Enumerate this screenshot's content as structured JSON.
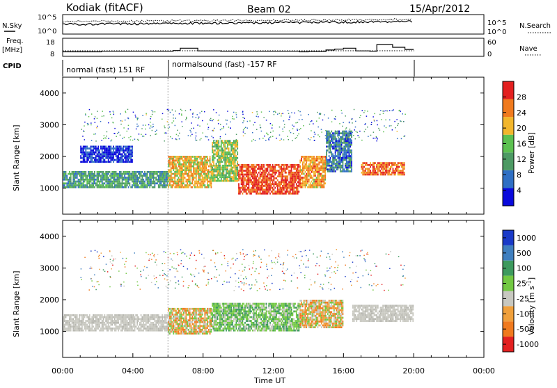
{
  "header": {
    "station": "Kodiak (fitACF)",
    "beam": "Beam 02",
    "date": "15/Apr/2012"
  },
  "top_panels": {
    "nsky_label": "N.Sky",
    "nsearch_label": "N.Search",
    "noise_ticks_left": [
      "10^5",
      "10^0"
    ],
    "noise_ticks_right": [
      "10^5",
      "10^0"
    ],
    "freq_label_line1": "Freq.",
    "freq_label_line2": "[MHz]",
    "freq_ticks": [
      "18",
      "8"
    ],
    "nave_label": "Nave",
    "nave_ticks": [
      "60",
      "0"
    ],
    "cpid_label": "CPID",
    "cpid_segments": [
      "normal (fast) 151 RF",
      "normalsound (fast) -157 RF"
    ],
    "freq_steps_hours": [
      0,
      2.2,
      6.0,
      6.3,
      6.7,
      7.7,
      9.0,
      13.5,
      14.0,
      15.0,
      15.5,
      16.0,
      16.7,
      17.5,
      17.9,
      18.8,
      19.5,
      20.0
    ],
    "freq_steps_mhz": [
      10.5,
      10.8,
      10.8,
      11.2,
      12.5,
      11.0,
      10.8,
      10.5,
      10.6,
      11.5,
      12.0,
      12.5,
      11.0,
      10.8,
      14.5,
      13.0,
      11.8,
      11.0
    ]
  },
  "chart_data": [
    {
      "type": "heatmap",
      "title": "",
      "xlabel": "Time UT",
      "ylabel": "Slant Range [km]",
      "x_ticks": [
        "00:00",
        "04:00",
        "08:00",
        "12:00",
        "16:00",
        "20:00",
        "00:00"
      ],
      "y_ticks": [
        "1000",
        "2000",
        "3000",
        "4000"
      ],
      "xlim_hours": [
        0,
        24
      ],
      "ylim_km": [
        180,
        4500
      ],
      "colorbar_label": "Power [dB]",
      "colorbar_ticks": [
        "4",
        "8",
        "12",
        "16",
        "20",
        "24",
        "28"
      ],
      "colorbar_range_db": [
        0,
        31
      ],
      "colorbar_colors": [
        "#0a0adc",
        "#2f6fc4",
        "#4d9a64",
        "#5cc050",
        "#f2b62c",
        "#f07a1e",
        "#e32020"
      ],
      "regions": [
        {
          "t": [
            0.0,
            6.0
          ],
          "r": [
            1000,
            1520
          ],
          "level": 11
        },
        {
          "t": [
            1.0,
            4.0
          ],
          "r": [
            1800,
            2300
          ],
          "level": 3
        },
        {
          "t": [
            6.0,
            8.5
          ],
          "r": [
            1000,
            2000
          ],
          "level": 20
        },
        {
          "t": [
            8.5,
            10.0
          ],
          "r": [
            1200,
            2500
          ],
          "level": 16
        },
        {
          "t": [
            10.0,
            13.5
          ],
          "r": [
            800,
            1750
          ],
          "level": 27
        },
        {
          "t": [
            13.5,
            15.0
          ],
          "r": [
            1000,
            2000
          ],
          "level": 22
        },
        {
          "t": [
            15.0,
            16.5
          ],
          "r": [
            1500,
            2800
          ],
          "level": 8
        },
        {
          "t": [
            17.0,
            19.5
          ],
          "r": [
            1400,
            1800
          ],
          "level": 25
        }
      ]
    },
    {
      "type": "heatmap",
      "title": "",
      "xlabel": "Time UT",
      "ylabel": "Slant Range [km]",
      "x_ticks": [
        "00:00",
        "04:00",
        "08:00",
        "12:00",
        "16:00",
        "20:00",
        "00:00"
      ],
      "y_ticks": [
        "1000",
        "2000",
        "3000",
        "4000"
      ],
      "xlim_hours": [
        0,
        24
      ],
      "ylim_km": [
        180,
        4500
      ],
      "colorbar_label": "Velocity [m s^-1]",
      "colorbar_ticks": [
        "1000",
        "500",
        "100",
        "25",
        "-25",
        "-100",
        "-500",
        "-1000"
      ],
      "colorbar_colors": [
        "#1a3ac8",
        "#3f7fbf",
        "#3d9a5e",
        "#72c842",
        "#c8c8c0",
        "#f0a03c",
        "#f07a1e",
        "#e32020"
      ],
      "regions": [
        {
          "t": [
            0.0,
            6.0
          ],
          "r": [
            1000,
            1500
          ],
          "class": "ground"
        },
        {
          "t": [
            6.0,
            8.5
          ],
          "r": [
            900,
            1700
          ],
          "class": "toward"
        },
        {
          "t": [
            8.5,
            13.5
          ],
          "r": [
            1000,
            1900
          ],
          "class": "away"
        },
        {
          "t": [
            13.5,
            16.0
          ],
          "r": [
            1100,
            2000
          ],
          "class": "mixed"
        },
        {
          "t": [
            16.5,
            20.0
          ],
          "r": [
            1300,
            1800
          ],
          "class": "ground"
        }
      ]
    }
  ]
}
